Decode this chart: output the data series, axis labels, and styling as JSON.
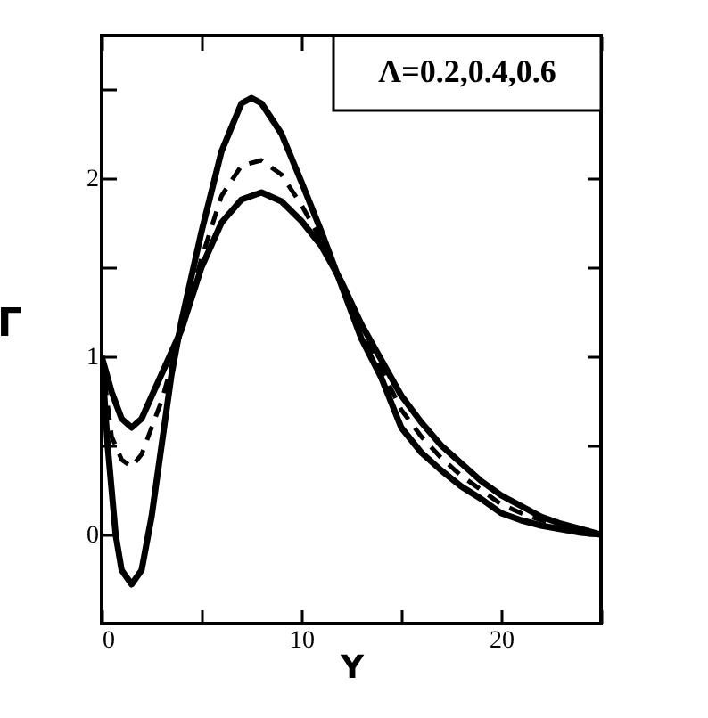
{
  "chart_data": {
    "type": "line",
    "xlabel": "Y",
    "ylabel": "Γ",
    "annotations": [
      "Λ=0.2,0.4,0.6"
    ],
    "xlim": [
      0,
      25
    ],
    "ylim": [
      -0.5,
      2.8
    ],
    "xticks": [
      0,
      {
        "value": 5,
        "label": null
      },
      10,
      {
        "value": 15,
        "label": null
      },
      20,
      {
        "value": 25,
        "label": null
      }
    ],
    "yticks": [
      0,
      {
        "value": 0.5,
        "label": null
      },
      1,
      {
        "value": 1.5,
        "label": null
      },
      2,
      {
        "value": 2.5,
        "label": null
      }
    ],
    "grid": false,
    "series": [
      {
        "color": "#000000",
        "line_style": "solid",
        "x": [
          0,
          0.5,
          1,
          1.5,
          2,
          3,
          4,
          5,
          6,
          7,
          8,
          9,
          10,
          11,
          12,
          13,
          14,
          15,
          16,
          17,
          18,
          19,
          20,
          21,
          22,
          23,
          24,
          25
        ],
        "values": [
          1,
          0.8,
          0.65,
          0.6,
          0.65,
          0.9,
          1.15,
          1.5,
          1.75,
          1.88,
          1.92,
          1.87,
          1.76,
          1.62,
          1.42,
          1.18,
          0.98,
          0.78,
          0.63,
          0.5,
          0.4,
          0.3,
          0.22,
          0.16,
          0.1,
          0.06,
          0.03,
          0
        ]
      },
      {
        "color": "#000000",
        "line_style": "dashed",
        "x": [
          0,
          0.5,
          1,
          1.5,
          2,
          3,
          4,
          5,
          6,
          7,
          8,
          9,
          10,
          11,
          12,
          13,
          14,
          15,
          16,
          17,
          18,
          19,
          20,
          21,
          22,
          23,
          24,
          25
        ],
        "values": [
          1,
          0.55,
          0.42,
          0.38,
          0.45,
          0.75,
          1.15,
          1.55,
          1.9,
          2.07,
          2.1,
          2.02,
          1.85,
          1.65,
          1.4,
          1.15,
          0.93,
          0.7,
          0.55,
          0.43,
          0.33,
          0.25,
          0.17,
          0.12,
          0.08,
          0.04,
          0.02,
          0
        ]
      },
      {
        "color": "#000000",
        "line_style": "solid",
        "x": [
          0,
          0.3,
          0.7,
          1,
          1.5,
          2,
          2.5,
          3,
          3.5,
          4,
          5,
          6,
          7,
          7.5,
          8,
          9,
          10,
          11,
          12,
          13,
          14,
          15,
          16,
          17,
          18,
          19,
          20,
          21,
          22,
          23,
          24,
          25
        ],
        "values": [
          1,
          0.5,
          0,
          -0.2,
          -0.28,
          -0.2,
          0.1,
          0.5,
          0.9,
          1.2,
          1.7,
          2.15,
          2.42,
          2.45,
          2.42,
          2.25,
          1.98,
          1.7,
          1.4,
          1.1,
          0.88,
          0.6,
          0.46,
          0.36,
          0.27,
          0.2,
          0.12,
          0.08,
          0.05,
          0.03,
          0.01,
          0
        ]
      }
    ]
  }
}
